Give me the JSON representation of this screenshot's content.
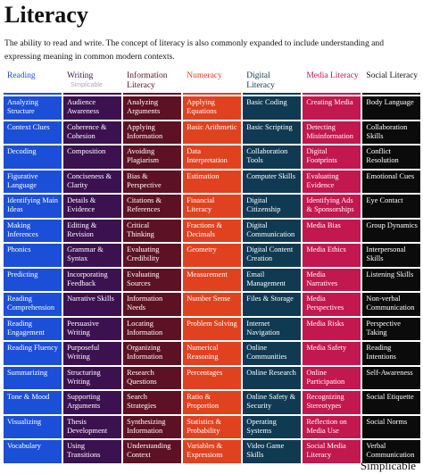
{
  "header": {
    "title": "Literacy",
    "description": "The ability to read and write. The concept of literacy is also commonly expanded to include understanding and expressing meaning in common modern contexts."
  },
  "watermark": "Simplicable",
  "footer": "Simplicable",
  "columns": [
    {
      "title": "Reading",
      "items": [
        "Analyzing Structure",
        "Context Clues",
        "Decoding",
        "Figurative Language",
        "Identifying Main Ideas",
        "Making Inferences",
        "Phonics",
        "Predicting",
        "Reading Comprehension",
        "Reading Engagement",
        "Reading Fluency",
        "Summarizing",
        "Tone & Mood",
        "Visualizing",
        "Vocabulary"
      ]
    },
    {
      "title": "Writing",
      "items": [
        "Audience Awareness",
        "Coherence & Cohesion",
        "Composition",
        "Conciseness & Clarity",
        "Details & Evidence",
        "Editing & Revision",
        "Grammar & Syntax",
        "Incorporating Feedback",
        "Narrative Skills",
        "Persuasive Writing",
        "Purposeful Writing",
        "Structuring Writing",
        "Supporting Arguments",
        "Thesis Development",
        "Using Transitions"
      ]
    },
    {
      "title": "Information Literacy",
      "items": [
        "Analyzing Arguments",
        "Applying Information",
        "Avoiding Plagiarism",
        "Bias & Perspective",
        "Citations & References",
        "Critical Thinking",
        "Evaluating Credibility",
        "Evaluating Sources",
        "Information Needs",
        "Locating Information",
        "Organizing Information",
        "Research Questions",
        "Search Strategies",
        "Synthesizing Information",
        "Understanding Context"
      ]
    },
    {
      "title": "Numeracy",
      "items": [
        "Applying Equations",
        "Basic Arithmetic",
        "Data Interpretation",
        "Estimation",
        "Financial Literacy",
        "Fractions & Decimals",
        "Geometry",
        "Measurement",
        "Number Sense",
        "Problem Solving",
        "Numerical Reasoning",
        "Percentages",
        "Ratio & Proportion",
        "Statistics & Probability",
        "Variables & Expressions"
      ]
    },
    {
      "title": "Digital Literacy",
      "items": [
        "Basic Coding",
        "Basic Scripting",
        "Collaboration Tools",
        "Computer Skills",
        "Digital Citizenship",
        "Digital Communication",
        "Digital Content Creation",
        "Email Management",
        "Files & Storage",
        "Internet Navigation",
        "Online Communities",
        "Online Research",
        "Online Safety & Security",
        "Operating Systems",
        "Video Game Skills"
      ]
    },
    {
      "title": "Media Literacy",
      "items": [
        "Creating Media",
        "Detecting Misinformation",
        "Digital Footprints",
        "Evaluating Evidence",
        "Identifying Ads & Sponsorships",
        "Media Bias",
        "Media Ethics",
        "Media Narratives",
        "Media Perspectives",
        "Media Risks",
        "Media Safety",
        "Online Participation",
        "Recognizing Stereotypes",
        "Reflection on Media Use",
        "Social Media Literacy"
      ]
    },
    {
      "title": "Social Literacy",
      "items": [
        "Body Language",
        "Collaboration Skills",
        "Conflict Resolution",
        "Emotional Cues",
        "Eye Contact",
        "Group Dynamics",
        "Interpersonal Skills",
        "Listening Skills",
        "Non-verbal Communication",
        "Perspective Taking",
        "Reading Intentions",
        "Self-Awareness",
        "Social Etiquette",
        "Social Norms",
        "Verbal Communication"
      ]
    }
  ]
}
